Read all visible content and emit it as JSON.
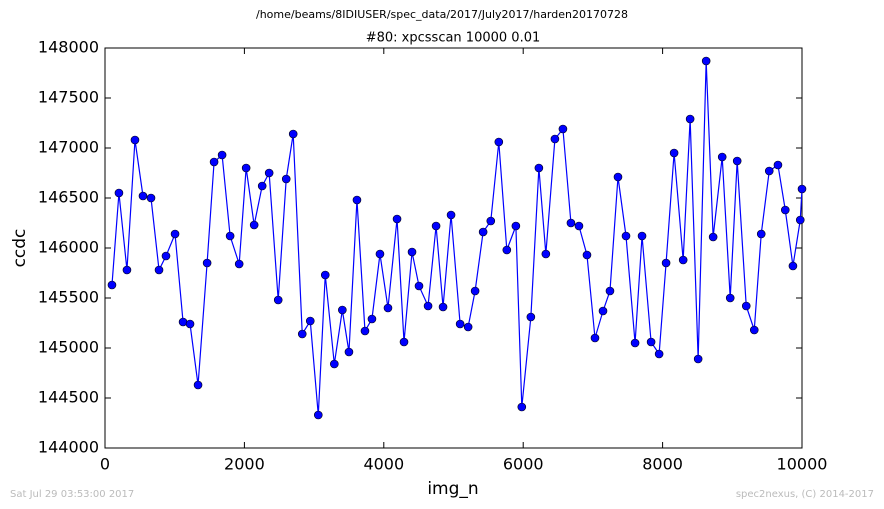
{
  "chart_data": {
    "type": "line",
    "suptitle": "/home/beams/8IDIUSER/spec_data/2017/July2017/harden20170728",
    "title": "#80: xpcsscan 10000 0.01",
    "x_label": "img_n",
    "y_label": "ccdc",
    "footer_left": "Sat Jul 29 03:53:00 2017",
    "footer_right": "spec2nexus, (C) 2014-2017",
    "xlim": [
      0,
      10000
    ],
    "xticks": [
      0,
      2000,
      4000,
      6000,
      8000,
      10000
    ],
    "ylim": [
      144000,
      148000
    ],
    "yticks": [
      144000,
      144500,
      145000,
      145500,
      146000,
      146500,
      147000,
      147500,
      148000
    ],
    "x": [
      100,
      200,
      315,
      430,
      545,
      660,
      775,
      875,
      1005,
      1120,
      1220,
      1335,
      1465,
      1565,
      1680,
      1795,
      1925,
      2025,
      2140,
      2255,
      2355,
      2485,
      2600,
      2700,
      2830,
      2945,
      3060,
      3160,
      3290,
      3405,
      3500,
      3615,
      3730,
      3830,
      3945,
      4060,
      4190,
      4290,
      4405,
      4505,
      4635,
      4750,
      4850,
      4965,
      5095,
      5210,
      5310,
      5425,
      5535,
      5650,
      5765,
      5895,
      5980,
      6110,
      6225,
      6325,
      6455,
      6570,
      6685,
      6800,
      6915,
      7030,
      7145,
      7245,
      7360,
      7475,
      7605,
      7705,
      7835,
      7950,
      8050,
      8165,
      8295,
      8395,
      8510,
      8625,
      8725,
      8855,
      8970,
      9070,
      9200,
      9315,
      9415,
      9530,
      9655,
      9760,
      9870,
      9975,
      10000
    ],
    "series": [
      {
        "color": "#0000ff",
        "values": [
          145630,
          146550,
          145780,
          147080,
          146520,
          146500,
          145780,
          145920,
          146140,
          145260,
          145240,
          144630,
          145850,
          146860,
          146930,
          146120,
          145840,
          146800,
          146230,
          146620,
          146750,
          145480,
          146690,
          147140,
          145140,
          145270,
          144330,
          145730,
          144840,
          145380,
          144960,
          146480,
          145170,
          145290,
          145940,
          145400,
          146290,
          145060,
          145960,
          145620,
          145420,
          146220,
          145410,
          146330,
          145240,
          145210,
          145570,
          146160,
          146270,
          147060,
          145980,
          146220,
          144410,
          145310,
          146800,
          145940,
          147090,
          147190,
          146250,
          146220,
          145930,
          145100,
          145370,
          145570,
          146710,
          146120,
          145050,
          146120,
          145060,
          144940,
          145850,
          146950,
          145880,
          147290,
          144890,
          147870,
          146110,
          146910,
          145500,
          146870,
          145420,
          145180,
          146140,
          146770,
          146830,
          146380,
          145820,
          146280,
          146590
        ]
      }
    ]
  }
}
